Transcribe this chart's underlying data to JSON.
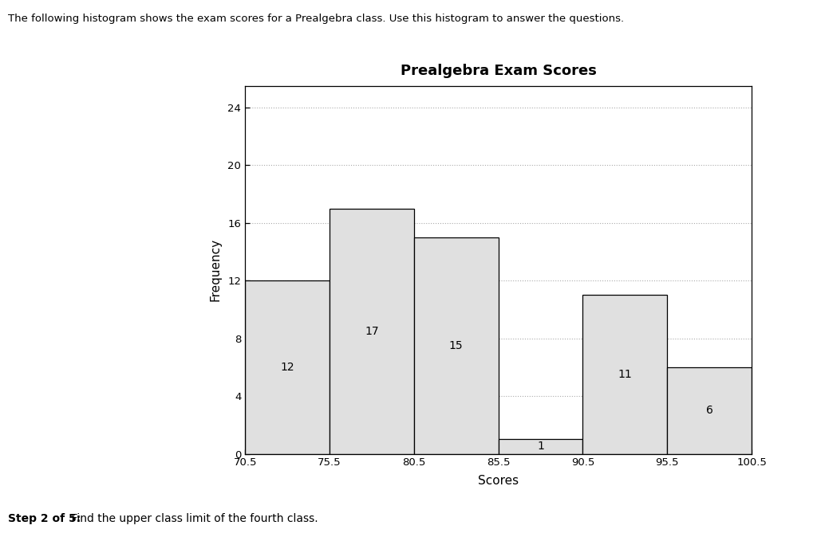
{
  "title": "Prealgebra Exam Scores",
  "xlabel": "Scores",
  "ylabel": "Frequency",
  "header_text": "The following histogram shows the exam scores for a Prealgebra class. Use this histogram to answer the questions.",
  "footer_text_bold": "Step 2 of 5:",
  "footer_text_normal": " Find the upper class limit of the fourth class.",
  "bin_edges": [
    70.5,
    75.5,
    80.5,
    85.5,
    90.5,
    95.5,
    100.5
  ],
  "frequencies": [
    12,
    17,
    15,
    1,
    11,
    6
  ],
  "bar_color": "#e0e0e0",
  "bar_edge_color": "#000000",
  "yticks": [
    0,
    4,
    8,
    12,
    16,
    20,
    24
  ],
  "ylim": [
    0,
    25.5
  ],
  "grid_color": "#aaaaaa",
  "background_color": "#ffffff",
  "title_fontsize": 13,
  "axis_label_fontsize": 11,
  "tick_fontsize": 9.5,
  "bar_label_fontsize": 10,
  "header_fontsize": 9.5,
  "footer_fontsize": 10
}
